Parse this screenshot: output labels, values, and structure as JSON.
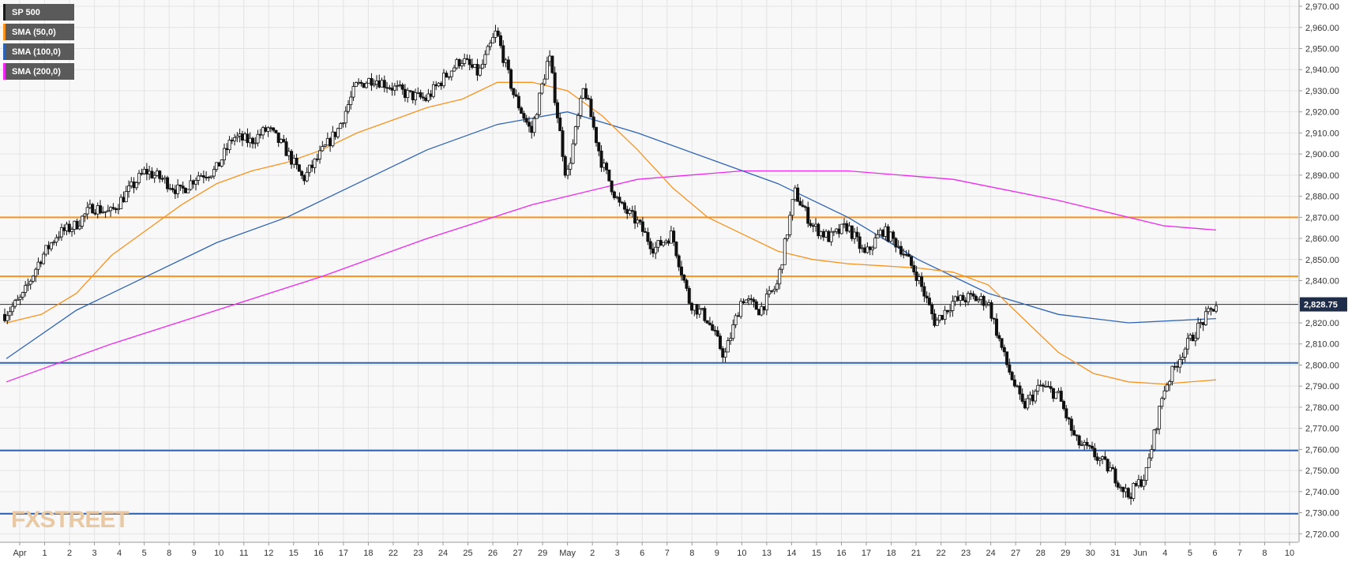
{
  "chart_data": {
    "type": "candlestick",
    "title": "",
    "symbol": "SP 500",
    "timeframe_hint": "hourly",
    "legend": {
      "placement": "top-left",
      "items": [
        {
          "label": "SP 500",
          "color": "#1a1a1a"
        },
        {
          "label": "SMA (50,0)",
          "color": "#f7931e"
        },
        {
          "label": "SMA (100,0)",
          "color": "#2f64b4"
        },
        {
          "label": "SMA (200,0)",
          "color": "#ee28ee"
        }
      ]
    },
    "x_tick_labels": [
      "Apr",
      "1",
      "2",
      "3",
      "4",
      "5",
      "8",
      "9",
      "10",
      "11",
      "12",
      "15",
      "16",
      "17",
      "18",
      "22",
      "23",
      "24",
      "25",
      "26",
      "27",
      "29",
      "May",
      "2",
      "3",
      "6",
      "7",
      "8",
      "9",
      "10",
      "13",
      "14",
      "15",
      "16",
      "17",
      "18",
      "21",
      "22",
      "23",
      "24",
      "27",
      "28",
      "29",
      "30",
      "31",
      "Jun",
      "4",
      "5",
      "6",
      "7",
      "8",
      "10"
    ],
    "y_axis": {
      "ylim": [
        2716,
        2973
      ],
      "tick_step": 10,
      "tick_labels": [
        "2,970.00",
        "2,960.00",
        "2,950.00",
        "2,940.00",
        "2,930.00",
        "2,920.00",
        "2,910.00",
        "2,900.00",
        "2,890.00",
        "2,880.00",
        "2,870.00",
        "2,860.00",
        "2,850.00",
        "2,840.00",
        "2,830.00",
        "2,820.00",
        "2,810.00",
        "2,800.00",
        "2,790.00",
        "2,780.00",
        "2,770.00",
        "2,760.00",
        "2,750.00",
        "2,740.00",
        "2,730.00",
        "2,720.00"
      ],
      "position": "right"
    },
    "current_price": {
      "value": 2828.75,
      "label": "2,828.75"
    },
    "horizontal_levels": [
      {
        "value": 2870.0,
        "color": "#f7931e",
        "kind": "resistance"
      },
      {
        "value": 2842.0,
        "color": "#f7931e",
        "kind": "resistance"
      },
      {
        "value": 2801.0,
        "color": "#2f64b4",
        "kind": "support"
      },
      {
        "value": 2759.5,
        "color": "#2f64b4",
        "kind": "support"
      },
      {
        "value": 2729.5,
        "color": "#2f64b4",
        "kind": "support"
      }
    ],
    "price_path": [
      [
        0,
        2824
      ],
      [
        1,
        2832
      ],
      [
        2,
        2850
      ],
      [
        3,
        2862
      ],
      [
        4,
        2866
      ],
      [
        5,
        2875
      ],
      [
        6,
        2872
      ],
      [
        7,
        2882
      ],
      [
        8,
        2892
      ],
      [
        9,
        2888
      ],
      [
        10,
        2882
      ],
      [
        11,
        2890
      ],
      [
        12,
        2892
      ],
      [
        13,
        2908
      ],
      [
        14,
        2906
      ],
      [
        15,
        2912
      ],
      [
        16,
        2902
      ],
      [
        17,
        2888
      ],
      [
        18,
        2900
      ],
      [
        19,
        2912
      ],
      [
        20,
        2932
      ],
      [
        21,
        2936
      ],
      [
        22,
        2932
      ],
      [
        23,
        2928
      ],
      [
        24,
        2926
      ],
      [
        25,
        2936
      ],
      [
        26,
        2945
      ],
      [
        27,
        2938
      ],
      [
        28,
        2958
      ],
      [
        29,
        2928
      ],
      [
        30,
        2910
      ],
      [
        31,
        2947
      ],
      [
        32,
        2888
      ],
      [
        33,
        2932
      ],
      [
        34,
        2896
      ],
      [
        35,
        2876
      ],
      [
        36,
        2868
      ],
      [
        37,
        2855
      ],
      [
        38,
        2862
      ],
      [
        39,
        2830
      ],
      [
        40,
        2822
      ],
      [
        41,
        2804
      ],
      [
        42,
        2832
      ],
      [
        43,
        2826
      ],
      [
        44,
        2838
      ],
      [
        45,
        2882
      ],
      [
        46,
        2866
      ],
      [
        47,
        2860
      ],
      [
        48,
        2866
      ],
      [
        49,
        2852
      ],
      [
        50,
        2864
      ],
      [
        51,
        2856
      ],
      [
        52,
        2842
      ],
      [
        53,
        2820
      ],
      [
        54,
        2830
      ],
      [
        55,
        2832
      ],
      [
        56,
        2830
      ],
      [
        57,
        2802
      ],
      [
        58,
        2780
      ],
      [
        59,
        2790
      ],
      [
        60,
        2786
      ],
      [
        61,
        2764
      ],
      [
        62,
        2758
      ],
      [
        63,
        2750
      ],
      [
        64,
        2738
      ],
      [
        65,
        2748
      ],
      [
        66,
        2788
      ],
      [
        67,
        2805
      ],
      [
        68,
        2818
      ],
      [
        69,
        2828.75
      ]
    ],
    "sma_50": [
      [
        0,
        2820
      ],
      [
        2,
        2824
      ],
      [
        4,
        2834
      ],
      [
        6,
        2852
      ],
      [
        8,
        2864
      ],
      [
        10,
        2876
      ],
      [
        12,
        2886
      ],
      [
        14,
        2892
      ],
      [
        16,
        2896
      ],
      [
        18,
        2902
      ],
      [
        20,
        2910
      ],
      [
        22,
        2916
      ],
      [
        24,
        2922
      ],
      [
        26,
        2926
      ],
      [
        28,
        2934
      ],
      [
        30,
        2934
      ],
      [
        32,
        2930
      ],
      [
        34,
        2918
      ],
      [
        36,
        2902
      ],
      [
        38,
        2884
      ],
      [
        40,
        2870
      ],
      [
        42,
        2862
      ],
      [
        44,
        2854
      ],
      [
        46,
        2850
      ],
      [
        48,
        2848
      ],
      [
        50,
        2847
      ],
      [
        52,
        2846
      ],
      [
        54,
        2844
      ],
      [
        56,
        2838
      ],
      [
        58,
        2822
      ],
      [
        60,
        2806
      ],
      [
        62,
        2796
      ],
      [
        64,
        2792
      ],
      [
        66,
        2791
      ],
      [
        69,
        2793
      ]
    ],
    "sma_100": [
      [
        0,
        2803
      ],
      [
        4,
        2826
      ],
      [
        8,
        2842
      ],
      [
        12,
        2858
      ],
      [
        16,
        2870
      ],
      [
        20,
        2886
      ],
      [
        24,
        2902
      ],
      [
        28,
        2914
      ],
      [
        32,
        2920
      ],
      [
        36,
        2910
      ],
      [
        40,
        2898
      ],
      [
        44,
        2886
      ],
      [
        48,
        2870
      ],
      [
        52,
        2850
      ],
      [
        56,
        2834
      ],
      [
        60,
        2824
      ],
      [
        64,
        2820
      ],
      [
        69,
        2822
      ]
    ],
    "sma_200": [
      [
        0,
        2792
      ],
      [
        6,
        2810
      ],
      [
        12,
        2826
      ],
      [
        18,
        2842
      ],
      [
        24,
        2860
      ],
      [
        30,
        2876
      ],
      [
        36,
        2888
      ],
      [
        42,
        2892
      ],
      [
        48,
        2892
      ],
      [
        54,
        2888
      ],
      [
        60,
        2878
      ],
      [
        66,
        2866
      ],
      [
        69,
        2864
      ]
    ],
    "grid": true
  },
  "branding": {
    "watermark": "FXSTREET"
  }
}
